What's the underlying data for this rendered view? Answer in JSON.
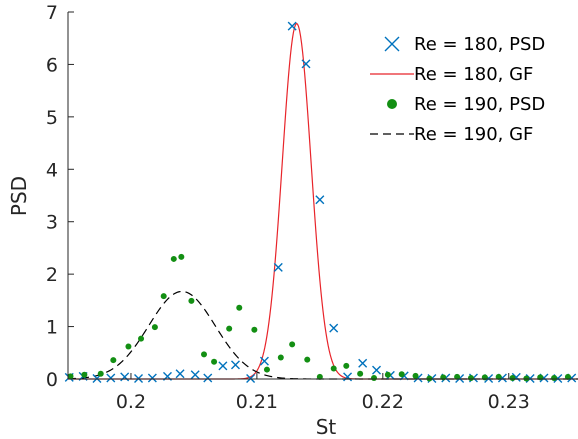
{
  "chart_data": {
    "type": "scatter",
    "xlabel": "St",
    "ylabel": "PSD",
    "xlim": [
      0.195,
      0.2355
    ],
    "ylim": [
      0,
      7
    ],
    "xticks": [
      0.2,
      0.21,
      0.22,
      0.23
    ],
    "xtick_labels": [
      "0.2",
      "0.21",
      "0.22",
      "0.23"
    ],
    "yticks": [
      0,
      1,
      2,
      3,
      4,
      5,
      6,
      7
    ],
    "ytick_labels": [
      "0",
      "1",
      "2",
      "3",
      "4",
      "5",
      "6",
      "7"
    ],
    "grid": false,
    "legend_position": "top-right",
    "series": [
      {
        "name": "Re = 180, PSD",
        "kind": "markers",
        "marker": "x",
        "color": "#0072BD",
        "x": [
          0.1951,
          0.1962,
          0.1973,
          0.1984,
          0.1995,
          0.2006,
          0.2017,
          0.2029,
          0.2039,
          0.2051,
          0.2061,
          0.2073,
          0.2083,
          0.2095,
          0.2106,
          0.2117,
          0.2128,
          0.2139,
          0.215,
          0.2161,
          0.2172,
          0.2184,
          0.2195,
          0.2206,
          0.2217,
          0.2228,
          0.2239,
          0.225,
          0.2261,
          0.2272,
          0.2284,
          0.2295,
          0.2306,
          0.2317,
          0.2328,
          0.2339,
          0.235
        ],
        "y": [
          0.03,
          0.05,
          0.01,
          0.02,
          0.04,
          0.01,
          0.02,
          0.05,
          0.1,
          0.08,
          0.02,
          0.25,
          0.27,
          0.01,
          0.34,
          2.13,
          6.73,
          6.01,
          3.42,
          0.97,
          0.04,
          0.3,
          0.17,
          0.07,
          0.06,
          0.02,
          0.01,
          0.02,
          0.01,
          0.02,
          0.01,
          0.02,
          0.03,
          0.01,
          0.02,
          0.01,
          0.02
        ]
      },
      {
        "name": "Re = 180, GF",
        "kind": "line",
        "style": "solid",
        "color": "#E8242A",
        "mu": 0.21316,
        "sigma": 0.00115,
        "amplitude": 6.78
      },
      {
        "name": "Re = 190, PSD",
        "kind": "markers",
        "marker": "dot",
        "color": "#138F13",
        "x": [
          0.1952,
          0.1963,
          0.1976,
          0.1986,
          0.1998,
          0.2008,
          0.2019,
          0.2026,
          0.2034,
          0.204,
          0.2048,
          0.2058,
          0.2066,
          0.2078,
          0.2086,
          0.2098,
          0.2108,
          0.2119,
          0.2128,
          0.214,
          0.215,
          0.2161,
          0.2171,
          0.2182,
          0.2193,
          0.2204,
          0.2215,
          0.2226,
          0.2237,
          0.2248,
          0.2259,
          0.227,
          0.2281,
          0.2292,
          0.2303,
          0.2314,
          0.2325,
          0.2336,
          0.2347
        ],
        "y": [
          0.05,
          0.08,
          0.1,
          0.36,
          0.62,
          0.77,
          0.99,
          1.58,
          2.29,
          2.33,
          1.49,
          0.47,
          0.33,
          0.96,
          1.36,
          0.94,
          0.18,
          0.41,
          0.66,
          0.37,
          0.04,
          0.2,
          0.25,
          0.1,
          0.02,
          0.08,
          0.09,
          0.06,
          0.01,
          0.03,
          0.04,
          0.02,
          0.03,
          0.04,
          0.02,
          0.01,
          0.03,
          0.02,
          0.04
        ]
      },
      {
        "name": "Re = 190, GF",
        "kind": "line",
        "style": "dashed",
        "color": "#000000",
        "mu": 0.20405,
        "sigma": 0.00265,
        "amplitude": 1.67
      }
    ]
  }
}
